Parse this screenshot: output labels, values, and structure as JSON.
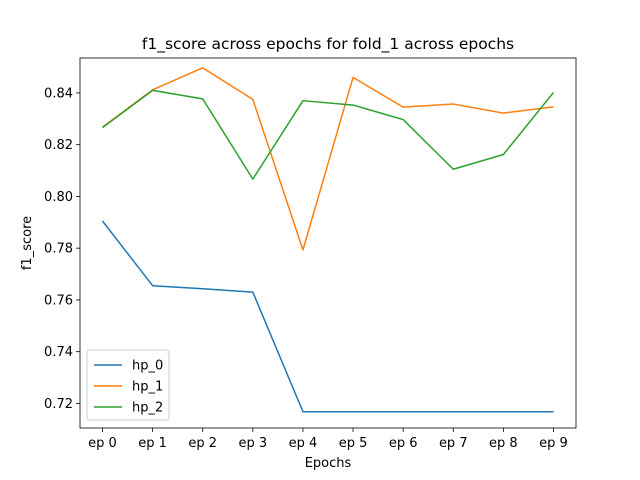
{
  "chart_data": {
    "type": "line",
    "title": "f1_score across epochs for fold_1 across epochs",
    "xlabel": "Epochs",
    "ylabel": "f1_score",
    "categories": [
      "ep 0",
      "ep 1",
      "ep 2",
      "ep 3",
      "ep 4",
      "ep 5",
      "ep 6",
      "ep 7",
      "ep 8",
      "ep 9"
    ],
    "ylim": [
      0.7105,
      0.8535
    ],
    "yticks": [
      0.72,
      0.74,
      0.76,
      0.78,
      0.8,
      0.82,
      0.84
    ],
    "ytick_labels": [
      "0.72",
      "0.74",
      "0.76",
      "0.78",
      "0.80",
      "0.82",
      "0.84"
    ],
    "grid": false,
    "legend_position": "lower-left",
    "series": [
      {
        "name": "hp_0",
        "color": "#1f77b4",
        "values": [
          0.7905,
          0.7655,
          0.7643,
          0.763,
          0.7168,
          0.7168,
          0.7168,
          0.7168,
          0.7168,
          0.7168
        ]
      },
      {
        "name": "hp_1",
        "color": "#ff7f0e",
        "values": [
          0.8268,
          0.8412,
          0.8497,
          0.8375,
          0.7793,
          0.846,
          0.8345,
          0.8357,
          0.8322,
          0.8346
        ]
      },
      {
        "name": "hp_2",
        "color": "#2ca02c",
        "values": [
          0.8266,
          0.841,
          0.8377,
          0.8067,
          0.837,
          0.8353,
          0.8297,
          0.8105,
          0.8162,
          0.8402
        ]
      }
    ]
  }
}
